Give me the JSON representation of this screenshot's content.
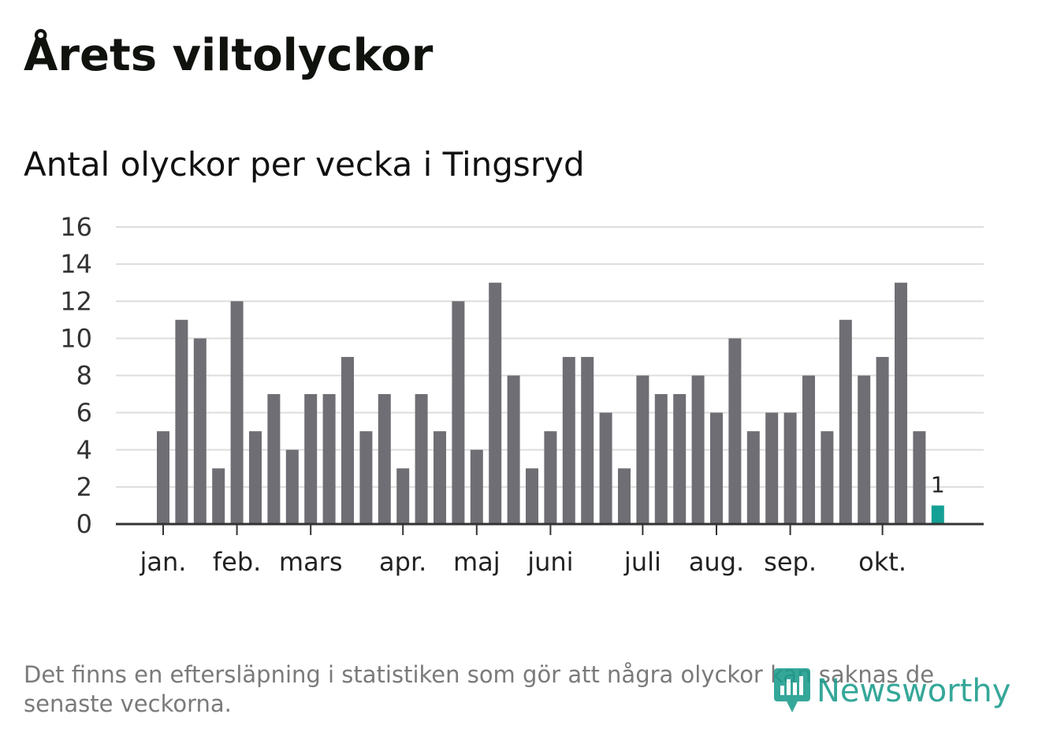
{
  "title": "Årets viltolyckor",
  "subtitle": "Antal olyckor per vecka i Tingsryd",
  "note": "Det finns en eftersläpning i statistiken som gör att några olyckor kan saknas de senaste veckorna.",
  "brand": {
    "name": "Newsworthy",
    "icon": "newsworthy-logo-icon"
  },
  "colors": {
    "bar": "#6f6e74",
    "highlight": "#15a095",
    "grid": "#dddddd",
    "axis": "#333333",
    "brand": "#1a9c8c"
  },
  "chart_data": {
    "type": "bar",
    "title": "Antal olyckor per vecka i Tingsryd",
    "xlabel": "",
    "ylabel": "",
    "ylim": [
      0,
      16
    ],
    "yticks": [
      0,
      2,
      4,
      6,
      8,
      10,
      12,
      14,
      16
    ],
    "grid": true,
    "values": [
      5,
      11,
      10,
      3,
      12,
      5,
      7,
      4,
      7,
      7,
      9,
      5,
      7,
      3,
      7,
      5,
      12,
      4,
      13,
      8,
      3,
      5,
      9,
      9,
      6,
      3,
      8,
      7,
      7,
      8,
      6,
      10,
      5,
      6,
      6,
      8,
      5,
      11,
      8,
      9,
      13,
      5,
      1
    ],
    "highlight_index": 42,
    "highlight_label": "1",
    "month_ticks": [
      {
        "label": "jan.",
        "week_index": 0
      },
      {
        "label": "feb.",
        "week_index": 4
      },
      {
        "label": "mars",
        "week_index": 8
      },
      {
        "label": "apr.",
        "week_index": 13
      },
      {
        "label": "maj",
        "week_index": 17
      },
      {
        "label": "juni",
        "week_index": 21
      },
      {
        "label": "juli",
        "week_index": 26
      },
      {
        "label": "aug.",
        "week_index": 30
      },
      {
        "label": "sep.",
        "week_index": 34
      },
      {
        "label": "okt.",
        "week_index": 39
      }
    ]
  }
}
